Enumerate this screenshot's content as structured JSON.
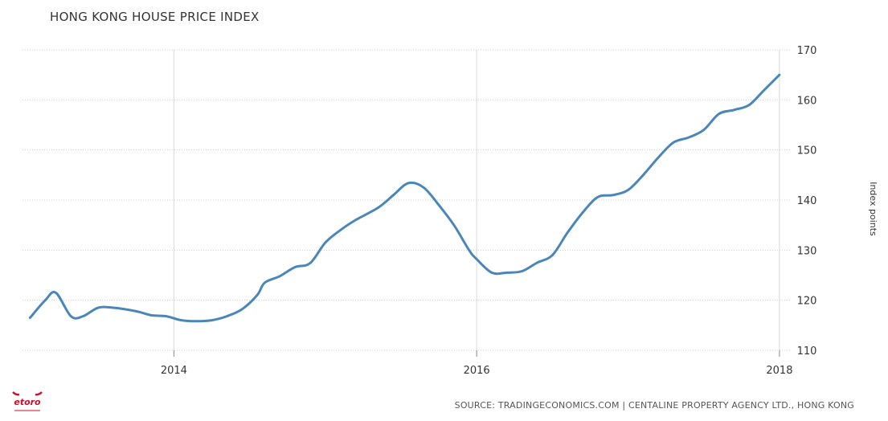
{
  "chart_data": {
    "type": "line",
    "title": "HONG KONG HOUSE PRICE INDEX",
    "ylabel": "Index points",
    "xlabel": "",
    "ylim": [
      110,
      170
    ],
    "yticks": [
      110,
      120,
      130,
      140,
      150,
      160,
      170
    ],
    "xticks": [
      {
        "label": "2014",
        "x": 2014
      },
      {
        "label": "2016",
        "x": 2016
      },
      {
        "label": "2018",
        "x": 2018
      }
    ],
    "xlim": [
      2013.0,
      2018.08
    ],
    "grid": true,
    "color": "#4a86b8",
    "series": [
      {
        "name": "",
        "x": [
          2013.05,
          2013.15,
          2013.22,
          2013.32,
          2013.4,
          2013.5,
          2013.6,
          2013.75,
          2013.85,
          2013.95,
          2014.05,
          2014.15,
          2014.25,
          2014.35,
          2014.45,
          2014.55,
          2014.6,
          2014.7,
          2014.8,
          2014.9,
          2015.0,
          2015.1,
          2015.2,
          2015.35,
          2015.45,
          2015.55,
          2015.65,
          2015.75,
          2015.85,
          2015.95,
          2016.0,
          2016.1,
          2016.2,
          2016.3,
          2016.4,
          2016.5,
          2016.6,
          2016.7,
          2016.8,
          2016.9,
          2017.0,
          2017.1,
          2017.2,
          2017.3,
          2017.4,
          2017.5,
          2017.6,
          2017.7,
          2017.8,
          2017.9,
          2018.0
        ],
        "values": [
          116.5,
          120.0,
          121.5,
          116.8,
          116.8,
          118.5,
          118.5,
          117.8,
          117.0,
          116.8,
          116.0,
          115.8,
          116.0,
          116.8,
          118.2,
          121.0,
          123.5,
          124.8,
          126.6,
          127.4,
          131.5,
          134.0,
          136.0,
          138.5,
          141.0,
          143.4,
          142.5,
          139.0,
          135.0,
          130.0,
          128.2,
          125.5,
          125.5,
          125.8,
          127.5,
          129.0,
          133.5,
          137.5,
          140.6,
          141.0,
          142.0,
          145.0,
          148.5,
          151.5,
          152.5,
          154.0,
          157.2,
          158.0,
          159.0,
          162.0,
          165.0
        ]
      }
    ]
  },
  "source": "SOURCE: TRADINGECONOMICS.COM | CENTALINE PROPERTY AGENCY LTD., HONG KONG",
  "logo": {
    "icon": "etoro-logo-icon",
    "text": "etoro"
  }
}
